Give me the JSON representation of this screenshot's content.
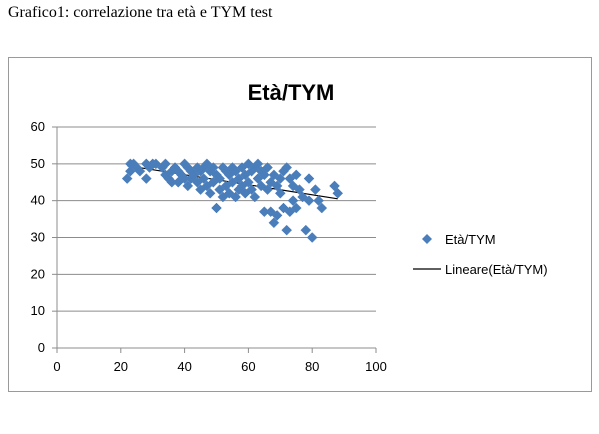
{
  "caption": "Grafico1: correlazione tra età e TYM test",
  "chart_data": {
    "type": "scatter",
    "title": "Età/TYM",
    "xlabel": "",
    "ylabel": "",
    "xlim": [
      0,
      100
    ],
    "ylim": [
      0,
      60
    ],
    "x_ticks": [
      0,
      20,
      40,
      60,
      80,
      100
    ],
    "y_ticks": [
      0,
      10,
      20,
      30,
      40,
      50,
      60
    ],
    "grid": "horizontal",
    "legend_position": "right",
    "series": [
      {
        "name": "Età/TYM",
        "marker": "diamond",
        "color": "#4a7ebb",
        "points": [
          [
            22,
            46
          ],
          [
            23,
            48
          ],
          [
            23,
            50
          ],
          [
            24,
            50
          ],
          [
            25,
            49
          ],
          [
            26,
            48
          ],
          [
            28,
            50
          ],
          [
            28,
            46
          ],
          [
            29,
            49
          ],
          [
            30,
            50
          ],
          [
            31,
            50
          ],
          [
            33,
            49
          ],
          [
            34,
            50
          ],
          [
            34,
            47
          ],
          [
            35,
            46
          ],
          [
            36,
            48
          ],
          [
            36,
            45
          ],
          [
            37,
            49
          ],
          [
            38,
            48
          ],
          [
            38,
            45
          ],
          [
            39,
            47
          ],
          [
            40,
            50
          ],
          [
            40,
            46
          ],
          [
            41,
            49
          ],
          [
            41,
            44
          ],
          [
            42,
            48
          ],
          [
            42,
            46
          ],
          [
            43,
            47
          ],
          [
            44,
            49
          ],
          [
            44,
            45
          ],
          [
            45,
            48
          ],
          [
            45,
            43
          ],
          [
            46,
            49
          ],
          [
            46,
            46
          ],
          [
            47,
            50
          ],
          [
            47,
            44
          ],
          [
            48,
            48
          ],
          [
            48,
            42
          ],
          [
            49,
            49
          ],
          [
            49,
            45
          ],
          [
            50,
            47
          ],
          [
            50,
            38
          ],
          [
            51,
            46
          ],
          [
            51,
            43
          ],
          [
            52,
            49
          ],
          [
            52,
            41
          ],
          [
            53,
            48
          ],
          [
            53,
            44
          ],
          [
            54,
            47
          ],
          [
            54,
            42
          ],
          [
            55,
            49
          ],
          [
            55,
            45
          ],
          [
            56,
            48
          ],
          [
            56,
            41
          ],
          [
            57,
            46
          ],
          [
            57,
            43
          ],
          [
            58,
            49
          ],
          [
            58,
            44
          ],
          [
            59,
            47
          ],
          [
            59,
            42
          ],
          [
            60,
            50
          ],
          [
            60,
            45
          ],
          [
            61,
            48
          ],
          [
            61,
            43
          ],
          [
            62,
            49
          ],
          [
            62,
            41
          ],
          [
            63,
            50
          ],
          [
            63,
            46
          ],
          [
            64,
            48
          ],
          [
            64,
            44
          ],
          [
            65,
            47
          ],
          [
            65,
            37
          ],
          [
            66,
            49
          ],
          [
            66,
            43
          ],
          [
            67,
            45
          ],
          [
            67,
            37
          ],
          [
            68,
            47
          ],
          [
            68,
            34
          ],
          [
            69,
            44
          ],
          [
            69,
            36
          ],
          [
            70,
            46
          ],
          [
            70,
            42
          ],
          [
            71,
            48
          ],
          [
            71,
            38
          ],
          [
            72,
            49
          ],
          [
            72,
            32
          ],
          [
            73,
            46
          ],
          [
            73,
            37
          ],
          [
            74,
            44
          ],
          [
            74,
            40
          ],
          [
            75,
            47
          ],
          [
            75,
            38
          ],
          [
            76,
            43
          ],
          [
            77,
            41
          ],
          [
            78,
            32
          ],
          [
            79,
            46
          ],
          [
            79,
            40
          ],
          [
            80,
            30
          ],
          [
            81,
            43
          ],
          [
            82,
            40
          ],
          [
            83,
            38
          ],
          [
            87,
            44
          ],
          [
            88,
            42
          ]
        ]
      }
    ],
    "trendline": {
      "name": "Lineare(Età/TYM)",
      "type": "linear",
      "x_range": [
        22,
        88
      ],
      "y_start": 49.5,
      "y_end": 40.5,
      "color": "#000000"
    }
  }
}
